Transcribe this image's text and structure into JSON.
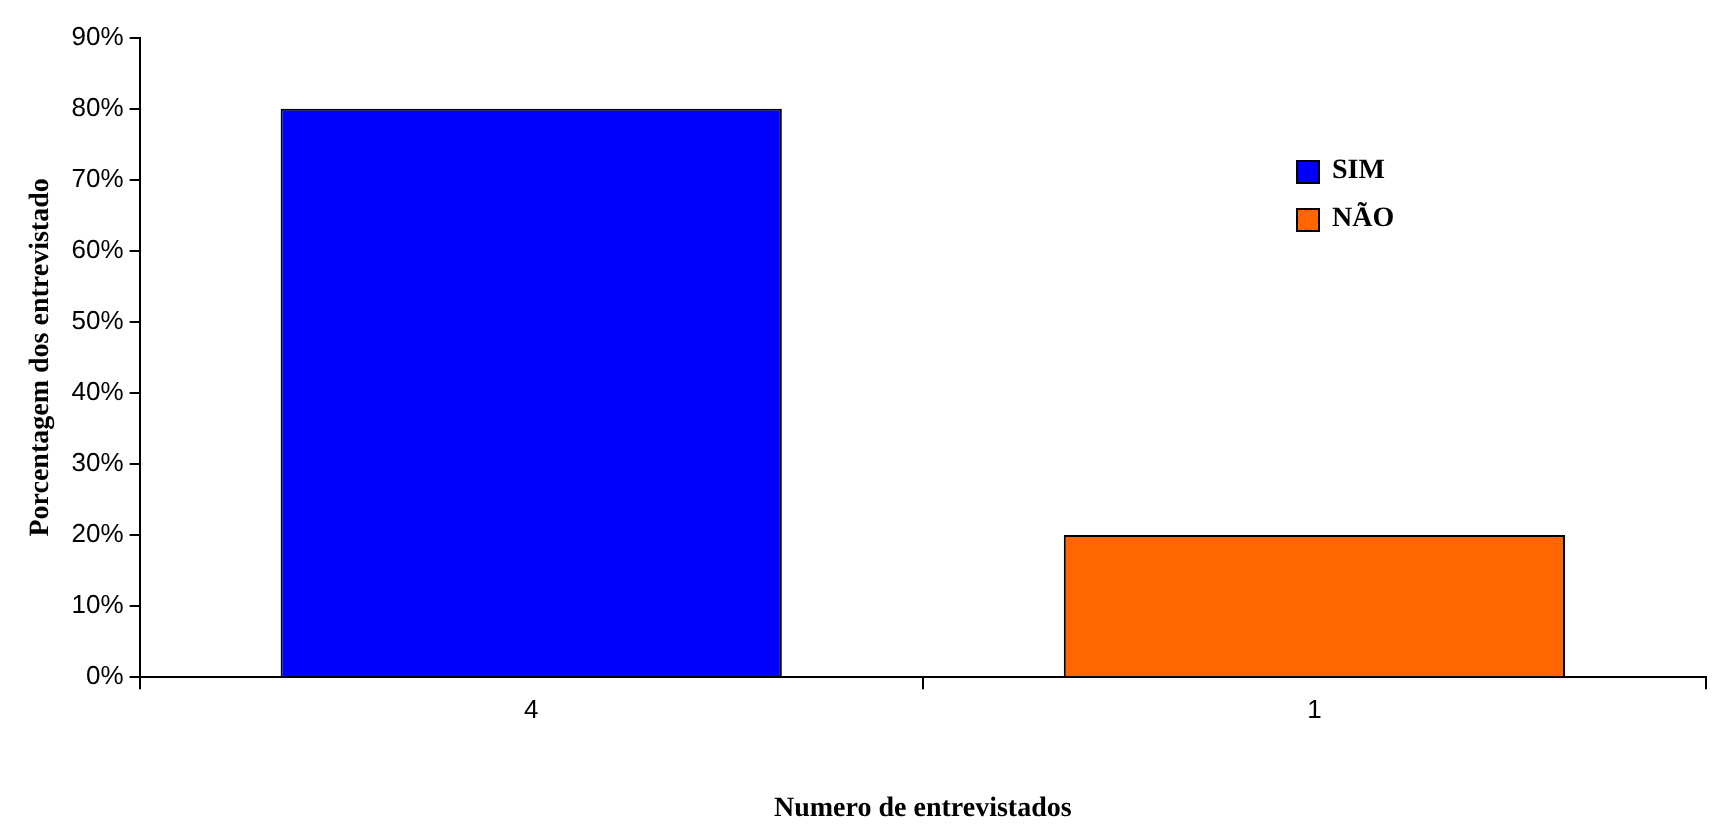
{
  "chart_data": {
    "type": "bar",
    "xlabel": "Numero de entrevistados",
    "ylabel": "Porcentagem dos entrevistado",
    "categories": [
      "4",
      "1"
    ],
    "series": [
      {
        "name": "SIM",
        "color": "#0000ff",
        "values": [
          80,
          null
        ]
      },
      {
        "name": "NÃO",
        "color": "#ff6600",
        "values": [
          null,
          20
        ]
      }
    ],
    "ylim": [
      0,
      90
    ],
    "yticks": [
      {
        "value": 0,
        "label": "0%"
      },
      {
        "value": 10,
        "label": "10%"
      },
      {
        "value": 20,
        "label": "20%"
      },
      {
        "value": 30,
        "label": "30%"
      },
      {
        "value": 40,
        "label": "40%"
      },
      {
        "value": 50,
        "label": "50%"
      },
      {
        "value": 60,
        "label": "60%"
      },
      {
        "value": 70,
        "label": "70%"
      },
      {
        "value": 80,
        "label": "80%"
      },
      {
        "value": 90,
        "label": "90%"
      }
    ],
    "grid": false,
    "legend": "top right"
  }
}
